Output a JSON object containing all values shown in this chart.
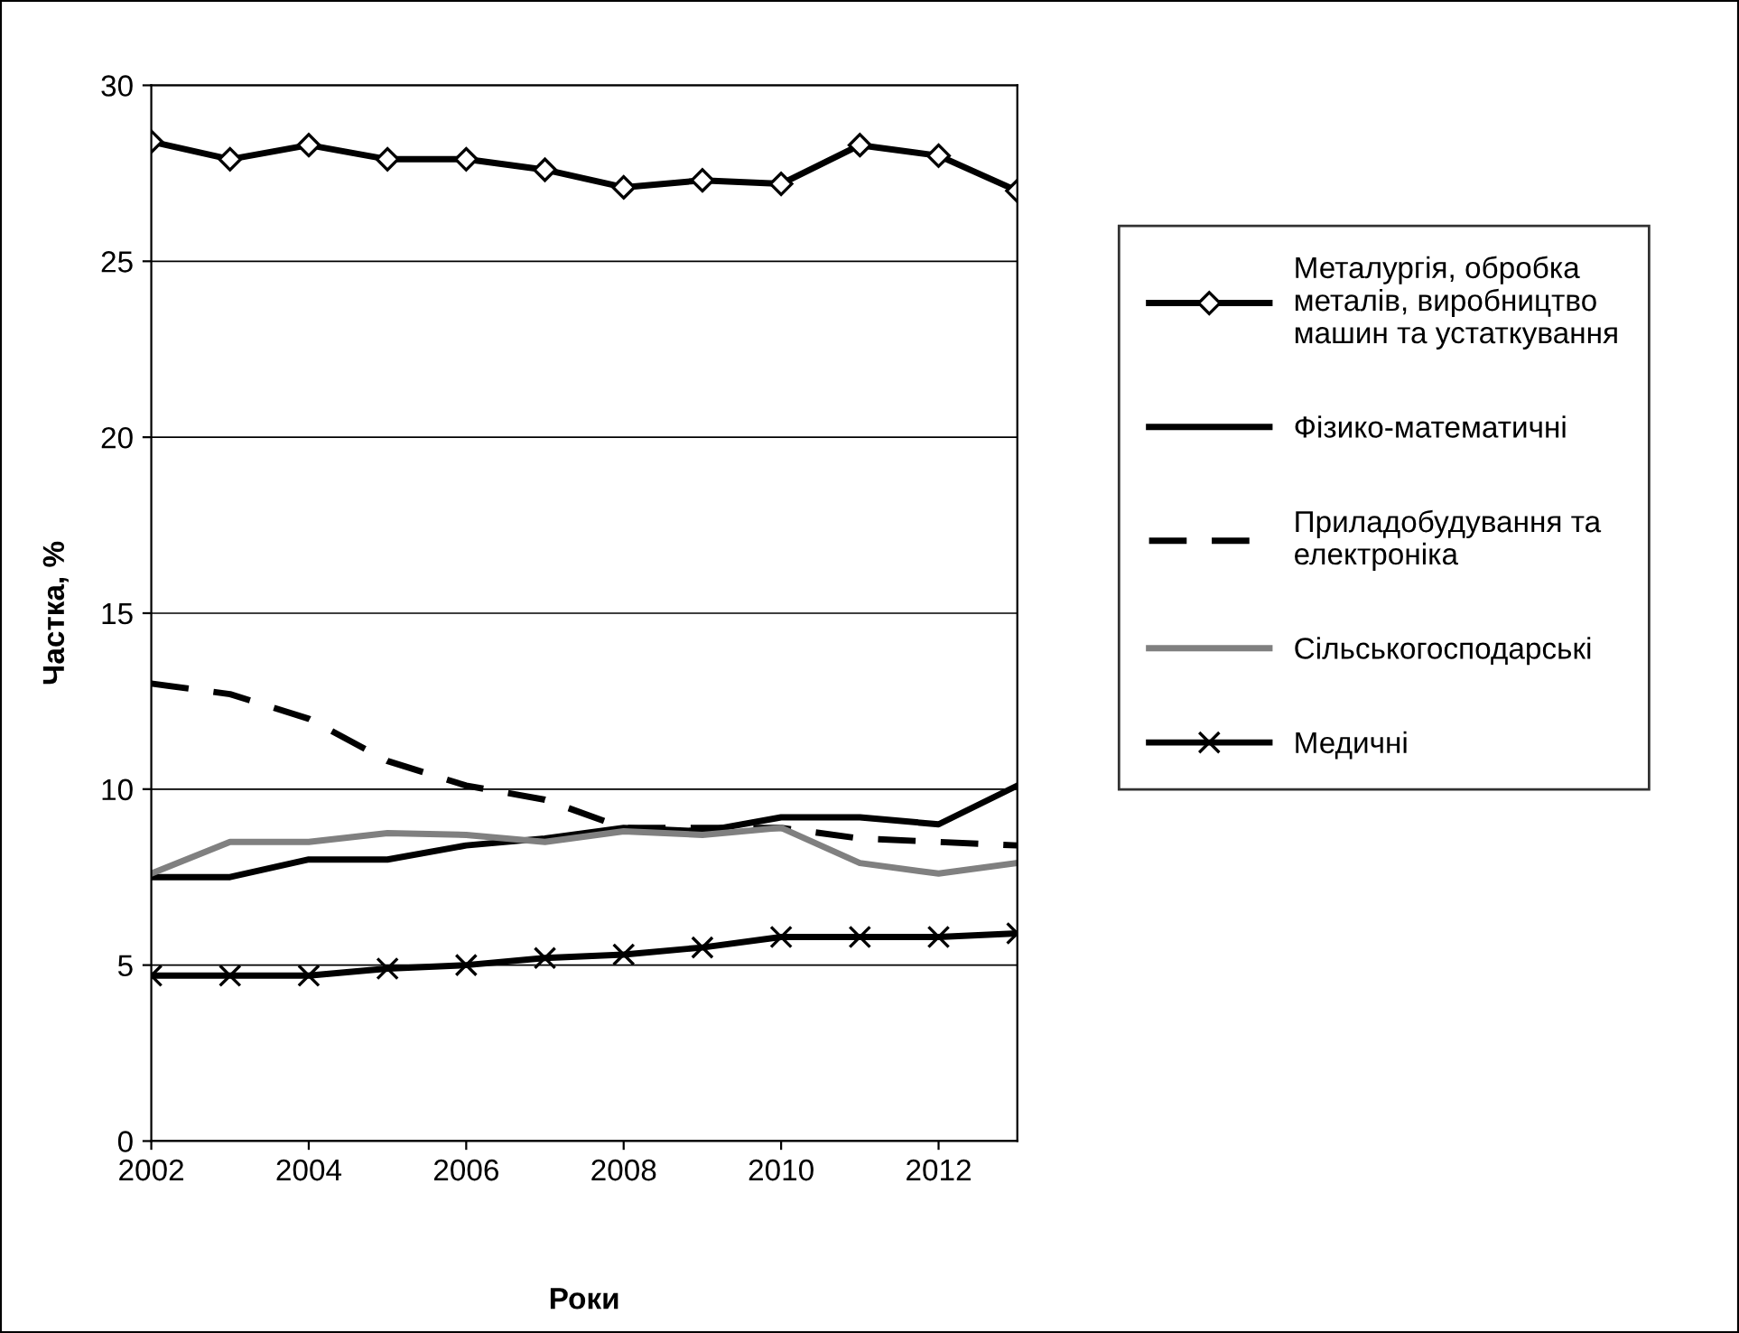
{
  "chart_data": {
    "type": "line",
    "xlabel": "Роки",
    "ylabel": "Частка, %",
    "x": [
      2002,
      2003,
      2004,
      2005,
      2006,
      2007,
      2008,
      2009,
      2010,
      2011,
      2012,
      2013
    ],
    "xlim": [
      2002,
      2013
    ],
    "xticks": [
      2002,
      2004,
      2006,
      2008,
      2010,
      2012
    ],
    "ylim": [
      0,
      30
    ],
    "yticks": [
      0,
      5,
      10,
      15,
      20,
      25,
      30
    ],
    "grid": "y",
    "legend": "right",
    "series": [
      {
        "name": "Металургія, обробка металів, виробництво машин та устаткування",
        "color": "#000000",
        "marker": "diamond",
        "line_style": "solid",
        "values": [
          28.4,
          27.9,
          28.3,
          27.9,
          27.9,
          27.6,
          27.1,
          27.3,
          27.2,
          28.3,
          28.0,
          27.0
        ]
      },
      {
        "name": "Фізико-математичні",
        "color": "#000000",
        "marker": "none",
        "line_style": "solid",
        "values": [
          7.5,
          7.5,
          8.0,
          8.0,
          8.4,
          8.6,
          8.9,
          8.8,
          9.2,
          9.2,
          9.0,
          10.1
        ]
      },
      {
        "name": "Приладобудування та електроніка",
        "color": "#000000",
        "marker": "none",
        "line_style": "dashed",
        "values": [
          13.0,
          12.7,
          12.0,
          10.8,
          10.1,
          9.7,
          8.9,
          8.9,
          8.9,
          8.6,
          8.5,
          8.4
        ]
      },
      {
        "name": "Сільськогосподарські",
        "color": "#808080",
        "marker": "none",
        "line_style": "solid",
        "values": [
          7.6,
          8.5,
          8.5,
          8.75,
          8.7,
          8.5,
          8.8,
          8.7,
          8.9,
          7.9,
          7.6,
          7.9
        ]
      },
      {
        "name": "Медичні",
        "color": "#000000",
        "marker": "cross",
        "line_style": "solid",
        "values": [
          4.7,
          4.7,
          4.7,
          4.9,
          5.0,
          5.2,
          5.3,
          5.5,
          5.8,
          5.8,
          5.8,
          5.9
        ]
      }
    ]
  }
}
